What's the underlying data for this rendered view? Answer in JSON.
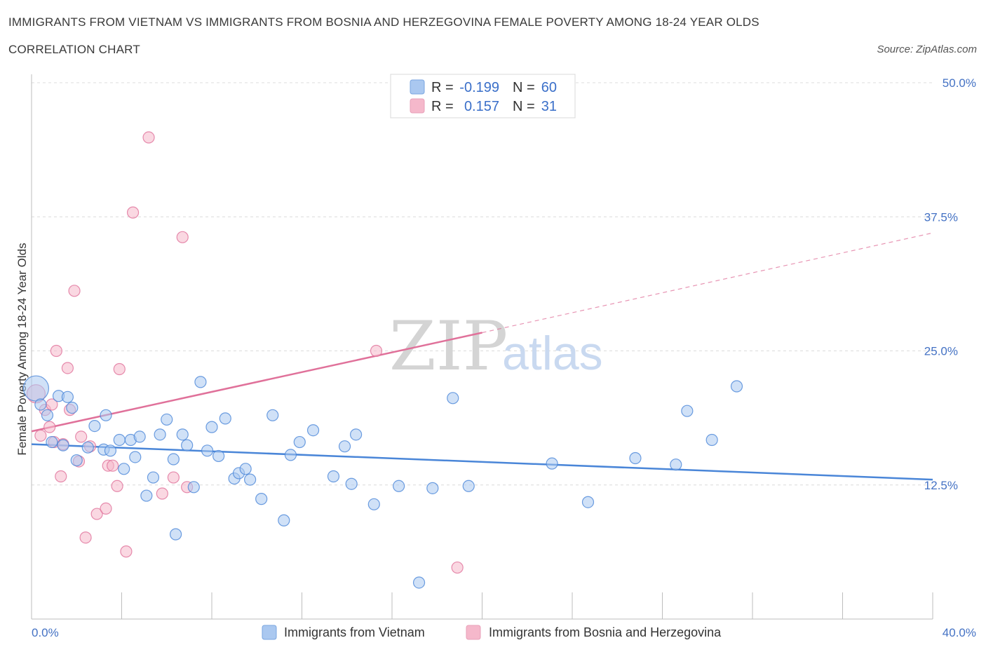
{
  "header": {
    "title": "IMMIGRANTS FROM VIETNAM VS IMMIGRANTS FROM BOSNIA AND HERZEGOVINA FEMALE POVERTY AMONG 18-24 YEAR OLDS",
    "subtitle": "CORRELATION CHART",
    "source": "Source: ZipAtlas.com"
  },
  "watermark": {
    "zip": "ZIP",
    "atlas": "atlas"
  },
  "legend_box": {
    "rows": [
      {
        "r_label": "R =",
        "r_value": "-0.199",
        "n_label": "N =",
        "n_value": "60",
        "color": "#aac8f0"
      },
      {
        "r_label": "R =",
        "r_value": "0.157",
        "n_label": "N =",
        "n_value": "31",
        "color": "#f5b8cb"
      }
    ]
  },
  "bottom_legend": [
    {
      "label": "Immigrants from Vietnam",
      "color": "#aac8f0"
    },
    {
      "label": "Immigrants from Bosnia and Herzegovina",
      "color": "#f5b8cb"
    }
  ],
  "chart_data": {
    "type": "scatter",
    "title": "IMMIGRANTS FROM VIETNAM VS IMMIGRANTS FROM BOSNIA AND HERZEGOVINA FEMALE POVERTY AMONG 18-24 YEAR OLDS",
    "ylabel": "Female Poverty Among 18-24 Year Olds",
    "xlabel": "",
    "x_tick_labels": [
      "0.0%",
      "40.0%"
    ],
    "y_tick_labels": [
      "12.5%",
      "25.0%",
      "37.5%",
      "50.0%"
    ],
    "xlim": [
      0,
      40
    ],
    "ylim": [
      0,
      50
    ],
    "grid": true,
    "legend": "top-center",
    "series": [
      {
        "name": "Immigrants from Vietnam",
        "color": "#4a86d8",
        "fill": "#aac8f0",
        "r": -0.199,
        "n": 60,
        "trend": {
          "x": [
            0,
            40
          ],
          "y": [
            16.3,
            13.0
          ]
        },
        "points": [
          [
            0.2,
            21.5
          ],
          [
            0.4,
            20.0
          ],
          [
            0.7,
            19.0
          ],
          [
            0.9,
            16.5
          ],
          [
            1.2,
            20.8
          ],
          [
            1.4,
            16.2
          ],
          [
            1.6,
            20.7
          ],
          [
            1.8,
            19.7
          ],
          [
            2.0,
            14.8
          ],
          [
            2.5,
            16.0
          ],
          [
            2.8,
            18.0
          ],
          [
            3.2,
            15.8
          ],
          [
            3.3,
            19.0
          ],
          [
            3.5,
            15.7
          ],
          [
            3.9,
            16.7
          ],
          [
            4.1,
            14.0
          ],
          [
            4.4,
            16.7
          ],
          [
            4.6,
            15.1
          ],
          [
            4.8,
            17.0
          ],
          [
            5.1,
            11.5
          ],
          [
            5.4,
            13.2
          ],
          [
            5.7,
            17.2
          ],
          [
            6.0,
            18.6
          ],
          [
            6.3,
            14.9
          ],
          [
            6.4,
            7.9
          ],
          [
            6.7,
            17.2
          ],
          [
            6.9,
            16.2
          ],
          [
            7.2,
            12.3
          ],
          [
            7.5,
            22.1
          ],
          [
            7.8,
            15.7
          ],
          [
            8.0,
            17.9
          ],
          [
            8.3,
            15.2
          ],
          [
            8.6,
            18.7
          ],
          [
            9.0,
            13.1
          ],
          [
            9.2,
            13.6
          ],
          [
            9.5,
            14.0
          ],
          [
            9.7,
            13.0
          ],
          [
            10.2,
            11.2
          ],
          [
            10.7,
            19.0
          ],
          [
            11.2,
            9.2
          ],
          [
            11.5,
            15.3
          ],
          [
            11.9,
            16.5
          ],
          [
            12.5,
            17.6
          ],
          [
            13.4,
            13.3
          ],
          [
            13.9,
            16.1
          ],
          [
            14.2,
            12.6
          ],
          [
            14.4,
            17.2
          ],
          [
            15.2,
            10.7
          ],
          [
            16.3,
            12.4
          ],
          [
            17.2,
            3.4
          ],
          [
            17.8,
            12.2
          ],
          [
            18.7,
            20.6
          ],
          [
            19.4,
            12.4
          ],
          [
            23.1,
            14.5
          ],
          [
            24.7,
            10.9
          ],
          [
            26.8,
            15.0
          ],
          [
            28.6,
            14.4
          ],
          [
            29.1,
            19.4
          ],
          [
            30.2,
            16.7
          ],
          [
            31.3,
            21.7
          ]
        ]
      },
      {
        "name": "Immigrants from Bosnia and Herzegovina",
        "color": "#e0719a",
        "fill": "#f5b8cb",
        "r": 0.157,
        "n": 31,
        "trend": {
          "x": [
            0,
            20
          ],
          "y": [
            17.5,
            26.7
          ],
          "dashed_to": {
            "x": 40,
            "y": 36.0
          }
        },
        "points": [
          [
            0.2,
            21.0
          ],
          [
            0.4,
            17.1
          ],
          [
            0.6,
            19.5
          ],
          [
            0.8,
            17.9
          ],
          [
            0.9,
            20.0
          ],
          [
            1.0,
            16.5
          ],
          [
            1.1,
            25.0
          ],
          [
            1.3,
            13.3
          ],
          [
            1.4,
            16.3
          ],
          [
            1.6,
            23.4
          ],
          [
            1.7,
            19.5
          ],
          [
            1.9,
            30.6
          ],
          [
            2.1,
            14.7
          ],
          [
            2.2,
            17.0
          ],
          [
            2.4,
            7.6
          ],
          [
            2.6,
            16.1
          ],
          [
            2.9,
            9.8
          ],
          [
            3.3,
            10.3
          ],
          [
            3.4,
            14.3
          ],
          [
            3.6,
            14.3
          ],
          [
            3.8,
            12.4
          ],
          [
            3.9,
            23.3
          ],
          [
            4.2,
            6.3
          ],
          [
            4.5,
            37.9
          ],
          [
            5.2,
            44.9
          ],
          [
            5.8,
            11.7
          ],
          [
            6.3,
            13.2
          ],
          [
            6.7,
            35.6
          ],
          [
            6.9,
            12.3
          ],
          [
            15.3,
            25.0
          ],
          [
            18.9,
            4.8
          ]
        ]
      }
    ]
  }
}
